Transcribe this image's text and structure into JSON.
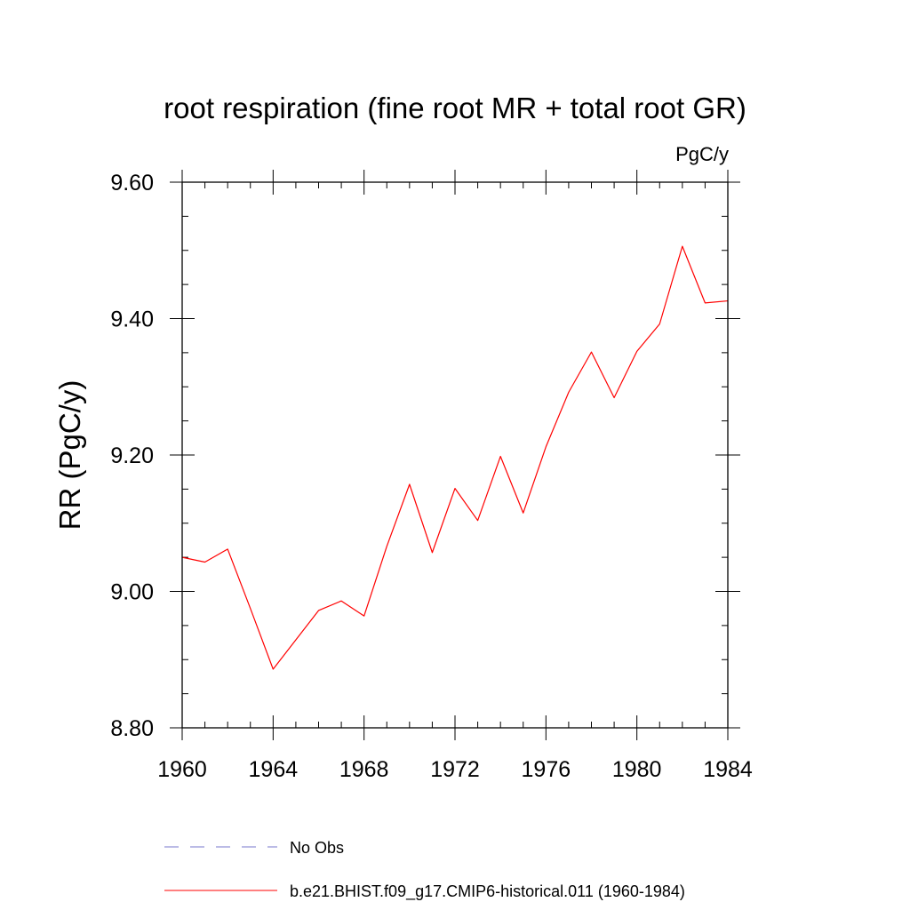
{
  "chart_data": {
    "type": "line",
    "title": "root respiration (fine root MR + total root GR)",
    "units": "PgC/y",
    "xlabel": "",
    "ylabel": "RR  (PgC/y)",
    "xlim": [
      1960,
      1984
    ],
    "ylim": [
      8.8,
      9.6
    ],
    "x_ticks": [
      1960,
      1964,
      1968,
      1972,
      1976,
      1980,
      1984
    ],
    "x_tick_labels": [
      "1960",
      "1964",
      "1968",
      "1972",
      "1976",
      "1980",
      "1984"
    ],
    "y_ticks": [
      8.8,
      9.0,
      9.2,
      9.4,
      9.6
    ],
    "y_tick_labels": [
      "8.80",
      "9.00",
      "9.20",
      "9.40",
      "9.60"
    ],
    "x_minor_step": 1,
    "y_minor_step": 0.05,
    "grid": false,
    "legend_position": "bottom",
    "series": [
      {
        "name": "No Obs",
        "color": "#7777cc",
        "style": "dashed",
        "x": [],
        "values": []
      },
      {
        "name": "b.e21.BHIST.f09_g17.CMIP6-historical.011 (1960-1984)",
        "color": "#ff0000",
        "style": "solid",
        "x": [
          1960,
          1961,
          1962,
          1963,
          1964,
          1965,
          1966,
          1967,
          1968,
          1969,
          1970,
          1971,
          1972,
          1973,
          1974,
          1975,
          1976,
          1977,
          1978,
          1979,
          1980,
          1981,
          1982,
          1983,
          1984
        ],
        "values": [
          9.05,
          9.043,
          9.062,
          8.975,
          8.886,
          8.929,
          8.972,
          8.986,
          8.964,
          9.066,
          9.157,
          9.057,
          9.151,
          9.104,
          9.198,
          9.115,
          9.212,
          9.292,
          9.351,
          9.284,
          9.352,
          9.392,
          9.506,
          9.423,
          9.426
        ]
      }
    ]
  }
}
